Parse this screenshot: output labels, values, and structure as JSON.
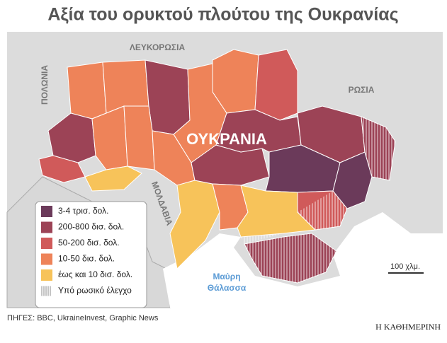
{
  "title": "Αξία του ορυκτού πλούτου της Ουκρανίας",
  "labels": {
    "belarus": "ΛΕΥΚΟΡΩΣΙΑ",
    "poland": "ΠΟΛΩΝΙΑ",
    "russia": "ΡΩΣΙΑ",
    "moldova": "ΜΟΛΔΑΒΙΑ",
    "ukraine": "ΟΥΚΡΑΝΙΑ",
    "sea_line1": "Μαύρη",
    "sea_line2": "Θάλασσα"
  },
  "legend": {
    "items": [
      {
        "label": "3-4 τρισ. δολ.",
        "color": "#6b3a5a"
      },
      {
        "label": "200-800 δισ. δολ.",
        "color": "#9c4356"
      },
      {
        "label": "50-200 δισ. δολ.",
        "color": "#d05a5a"
      },
      {
        "label": "10-50 δισ. δολ.",
        "color": "#ee8359"
      },
      {
        "label": "έως και 10 δισ. δολ.",
        "color": "#f7c35a"
      }
    ],
    "hatch_label": "Υπό ρωσικό έλεγχο"
  },
  "scale": "100 χλμ.",
  "source": "ΠΗΓΕΣ: BBC, UkraineInvest, Graphic News",
  "publisher": "Η ΚΑΘΗΜΕΡΙΝΗ"
}
